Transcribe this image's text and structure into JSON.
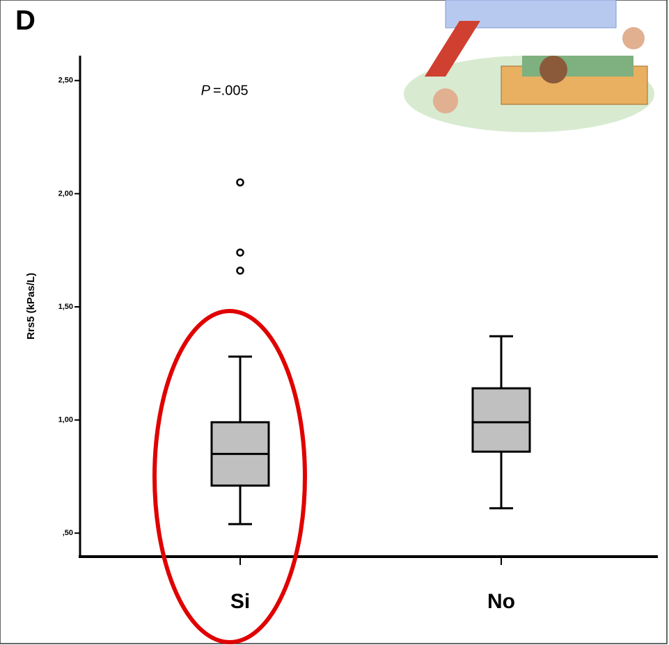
{
  "chart_data": {
    "type": "box",
    "panel_label": "D",
    "ylabel": "Rrs5 (kPas/L)",
    "annotation": {
      "p_symbol": "P",
      "p_text": "=.005"
    },
    "categories": [
      "Si",
      "No"
    ],
    "boxes": [
      {
        "whisker_low": 0.54,
        "q1": 0.71,
        "median": 0.85,
        "q3": 0.99,
        "whisker_high": 1.28,
        "outliers": [
          2.05,
          1.74,
          1.66
        ]
      },
      {
        "whisker_low": 0.61,
        "q1": 0.86,
        "median": 0.99,
        "q3": 1.14,
        "whisker_high": 1.37,
        "outliers": []
      }
    ],
    "box_color": "#c0c0c0",
    "ylim": [
      0.39,
      2.61
    ],
    "yticks": [
      {
        "value": 0.5,
        "label": ",50"
      },
      {
        "value": 1.0,
        "label": "1,00"
      },
      {
        "value": 1.5,
        "label": "1,50"
      },
      {
        "value": 2.0,
        "label": "2,00"
      },
      {
        "value": 2.5,
        "label": "2,50"
      }
    ]
  }
}
